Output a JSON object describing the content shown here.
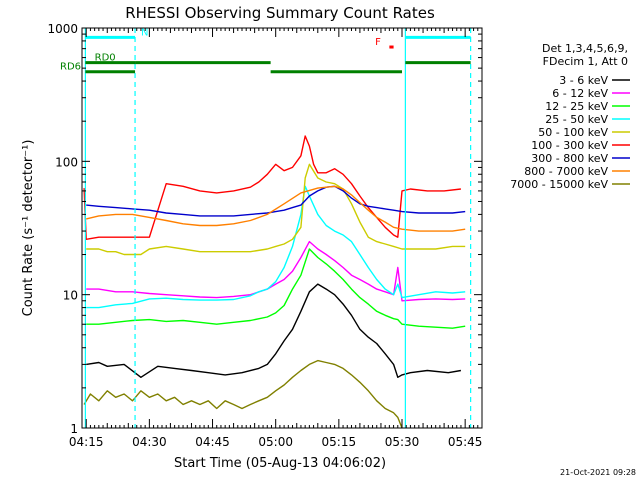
{
  "chart_data": {
    "type": "line",
    "title": "RHESSI Observing Summary Count Rates",
    "xlabel": "Start Time (05-Aug-13 04:06:02)",
    "ylabel": "Count Rate (s⁻¹ detector⁻¹)",
    "yscale": "log",
    "xlim": [
      8.0,
      103.0
    ],
    "ylim": [
      1,
      1000
    ],
    "x_ticks": [
      {
        "value": 9,
        "label": "04:15"
      },
      {
        "value": 24,
        "label": "04:30"
      },
      {
        "value": 39,
        "label": "04:45"
      },
      {
        "value": 54,
        "label": "05:00"
      },
      {
        "value": 69,
        "label": "05:15"
      },
      {
        "value": 84,
        "label": "05:30"
      },
      {
        "value": 99,
        "label": "05:45"
      }
    ],
    "y_ticks": [
      {
        "value": 1,
        "label": "1"
      },
      {
        "value": 10,
        "label": "10"
      },
      {
        "value": 100,
        "label": "100"
      },
      {
        "value": 1000,
        "label": "1000"
      }
    ],
    "legend_header": [
      "Det 1,3,4,5,6,9,",
      "FDecim 1, Att 0"
    ],
    "legend_position": "right",
    "series": [
      {
        "name": "3 - 6 keV",
        "color": "#000000",
        "x": [
          9,
          12,
          14,
          18,
          22,
          26,
          30,
          34,
          38,
          42,
          46,
          50,
          52,
          54,
          56,
          58,
          60,
          62,
          64,
          66,
          68,
          70,
          72,
          74,
          76,
          78,
          80,
          82,
          83,
          84,
          86,
          90,
          95,
          98
        ],
        "y": [
          3.0,
          3.1,
          2.9,
          3.0,
          2.4,
          2.9,
          2.8,
          2.7,
          2.6,
          2.5,
          2.6,
          2.8,
          3.0,
          3.6,
          4.5,
          5.5,
          7.5,
          10.5,
          12,
          11,
          10,
          8.5,
          7.0,
          5.5,
          4.8,
          4.3,
          3.6,
          3.0,
          2.4,
          2.5,
          2.6,
          2.7,
          2.6,
          2.7
        ]
      },
      {
        "name": "6 - 12 keV",
        "color": "#ff00ff",
        "x": [
          9,
          12,
          16,
          20,
          24,
          28,
          32,
          36,
          40,
          44,
          48,
          52,
          54,
          56,
          58,
          60,
          62,
          64,
          66,
          68,
          70,
          72,
          74,
          76,
          78,
          80,
          82,
          83,
          84,
          88,
          92,
          96,
          99
        ],
        "y": [
          11,
          11,
          10.5,
          10.5,
          10.2,
          10,
          9.8,
          9.6,
          9.5,
          9.7,
          10,
          11,
          12,
          13,
          15,
          19,
          25,
          22,
          20,
          18,
          16,
          14,
          13,
          12,
          11,
          10.5,
          10,
          16,
          9,
          9.2,
          9.3,
          9.2,
          9.3
        ]
      },
      {
        "name": "12 - 25 keV",
        "color": "#00ff00",
        "x": [
          9,
          12,
          16,
          20,
          24,
          28,
          32,
          36,
          40,
          44,
          48,
          52,
          54,
          56,
          58,
          60,
          62,
          64,
          66,
          68,
          70,
          72,
          74,
          76,
          78,
          80,
          82,
          83,
          84,
          88,
          92,
          96,
          99
        ],
        "y": [
          6.0,
          6.0,
          6.2,
          6.4,
          6.5,
          6.3,
          6.4,
          6.2,
          6.0,
          6.2,
          6.4,
          6.8,
          7.3,
          8.3,
          11,
          14,
          22,
          19,
          17,
          15,
          13,
          11,
          9.5,
          8.5,
          7.5,
          7.0,
          6.6,
          6.5,
          6.0,
          5.8,
          5.7,
          5.6,
          5.8
        ]
      },
      {
        "name": "25 - 50 keV",
        "color": "#00ffff",
        "x": [
          9,
          12,
          16,
          20,
          24,
          28,
          32,
          36,
          40,
          44,
          48,
          50,
          52,
          54,
          56,
          58,
          60,
          61,
          62,
          64,
          66,
          68,
          70,
          72,
          74,
          76,
          78,
          80,
          82,
          83,
          84,
          88,
          92,
          96,
          99
        ],
        "y": [
          8.0,
          8.0,
          8.4,
          8.6,
          9.3,
          9.4,
          9.2,
          9.1,
          9.1,
          9.2,
          9.8,
          10.5,
          11,
          12.5,
          16,
          23,
          40,
          65,
          55,
          40,
          33,
          30,
          28,
          25,
          20,
          16,
          13,
          11,
          10,
          12,
          9.5,
          10,
          10.5,
          10.3,
          10.5
        ]
      },
      {
        "name": "50 - 100 keV",
        "color": "#cccc00",
        "x": [
          9,
          12,
          14,
          16,
          18,
          20,
          22,
          24,
          28,
          32,
          36,
          40,
          44,
          48,
          52,
          54,
          56,
          58,
          60,
          61,
          62,
          64,
          66,
          68,
          70,
          72,
          74,
          76,
          78,
          80,
          82,
          84,
          88,
          92,
          96,
          99
        ],
        "y": [
          22,
          22,
          21,
          21,
          20,
          20,
          20,
          22,
          23,
          22,
          21,
          21,
          21,
          21,
          22,
          23,
          24,
          26,
          32,
          75,
          95,
          75,
          70,
          68,
          62,
          48,
          35,
          27,
          25,
          24,
          23,
          22,
          22,
          22,
          23,
          23
        ]
      },
      {
        "name": "100 - 300 keV",
        "color": "#ff0000",
        "x": [
          8.5,
          9,
          12,
          16,
          20,
          24,
          28,
          32,
          36,
          40,
          44,
          48,
          50,
          52,
          54,
          56,
          58,
          60,
          61,
          62,
          63,
          64,
          66,
          68,
          70,
          72,
          74,
          76,
          78,
          80,
          82,
          83,
          84,
          86,
          90,
          94,
          98
        ],
        "y": [
          63,
          26,
          27,
          27,
          27,
          27,
          68,
          65,
          60,
          58,
          60,
          64,
          70,
          80,
          95,
          85,
          90,
          110,
          155,
          130,
          95,
          82,
          82,
          88,
          80,
          68,
          55,
          45,
          38,
          32,
          28,
          27,
          60,
          62,
          60,
          60,
          62
        ]
      },
      {
        "name": "300 - 800 keV",
        "color": "#0000cc",
        "x": [
          9,
          12,
          16,
          20,
          24,
          28,
          32,
          36,
          40,
          44,
          48,
          52,
          54,
          56,
          58,
          60,
          62,
          64,
          66,
          68,
          70,
          72,
          74,
          76,
          78,
          80,
          82,
          84,
          88,
          92,
          96,
          99
        ],
        "y": [
          47,
          46,
          45,
          44,
          43,
          41,
          40,
          39,
          39,
          39,
          40,
          41,
          42,
          43,
          45,
          47,
          55,
          60,
          64,
          65,
          60,
          53,
          48,
          46,
          45,
          44,
          43,
          42,
          41,
          41,
          41,
          42
        ]
      },
      {
        "name": "800 - 7000 keV",
        "color": "#ff8000",
        "x": [
          9,
          12,
          16,
          20,
          24,
          28,
          32,
          36,
          40,
          44,
          48,
          52,
          56,
          60,
          64,
          66,
          68,
          70,
          72,
          74,
          76,
          78,
          80,
          82,
          84,
          88,
          92,
          96,
          99
        ],
        "y": [
          37,
          39,
          40,
          40,
          38,
          36,
          34,
          33,
          33,
          34,
          36,
          40,
          48,
          58,
          63,
          64,
          65,
          62,
          56,
          49,
          43,
          38,
          35,
          32,
          31,
          30,
          30,
          30,
          31
        ]
      },
      {
        "name": "7000 - 15000 keV",
        "color": "#808000",
        "x": [
          8.5,
          10,
          12,
          14,
          16,
          18,
          20,
          22,
          24,
          26,
          28,
          30,
          32,
          34,
          36,
          38,
          40,
          42,
          44,
          46,
          48,
          50,
          52,
          54,
          56,
          58,
          60,
          62,
          64,
          66,
          68,
          70,
          72,
          74,
          76,
          78,
          80,
          82,
          83,
          84
        ],
        "y": [
          1.5,
          1.8,
          1.6,
          1.9,
          1.7,
          1.8,
          1.6,
          1.9,
          1.7,
          1.8,
          1.6,
          1.7,
          1.5,
          1.6,
          1.5,
          1.6,
          1.4,
          1.6,
          1.5,
          1.4,
          1.5,
          1.6,
          1.7,
          1.9,
          2.1,
          2.4,
          2.7,
          3.0,
          3.2,
          3.1,
          3.0,
          2.8,
          2.5,
          2.2,
          1.9,
          1.6,
          1.4,
          1.3,
          1.2,
          1.0
        ]
      }
    ],
    "annotations": {
      "vertical_lines": [
        {
          "x": 8.8,
          "color": "#00ffff",
          "style": "solid"
        },
        {
          "x": 20.6,
          "color": "#00ffff",
          "style": "dashed"
        },
        {
          "x": 84.8,
          "color": "#00ffff",
          "style": "solid"
        },
        {
          "x": 100.3,
          "color": "#00ffff",
          "style": "dashed"
        }
      ],
      "bars": [
        {
          "label": "N",
          "color": "#00ffff",
          "level": 850,
          "segments": [
            [
              8.8,
              20.6
            ],
            [
              84.8,
              100.3
            ]
          ],
          "label_x": 22.0,
          "label_color": "#00ffff"
        },
        {
          "label": "F",
          "color": "#ff0000",
          "level": 720,
          "segments": [
            [
              81.0,
              82.0
            ]
          ],
          "label_x": 79.0,
          "label_color": "#ff0000",
          "label_side": "left"
        },
        {
          "label": "RD0",
          "color": "#008000",
          "level": 550,
          "segments": [
            [
              8.8,
              20.6
            ],
            [
              20.6,
              52.8
            ],
            [
              84.8,
              100.3
            ]
          ],
          "label_x": 11.0,
          "label_color": "#008000"
        },
        {
          "label": "RD6",
          "color": "#008000",
          "level": 470,
          "segments": [
            [
              8.8,
              20.6
            ],
            [
              52.8,
              84.0
            ]
          ],
          "label_x": 3.5,
          "label_color": "#008000"
        }
      ]
    },
    "grid": false
  },
  "footer": {
    "timestamp": "21-Oct-2021 09:28"
  }
}
